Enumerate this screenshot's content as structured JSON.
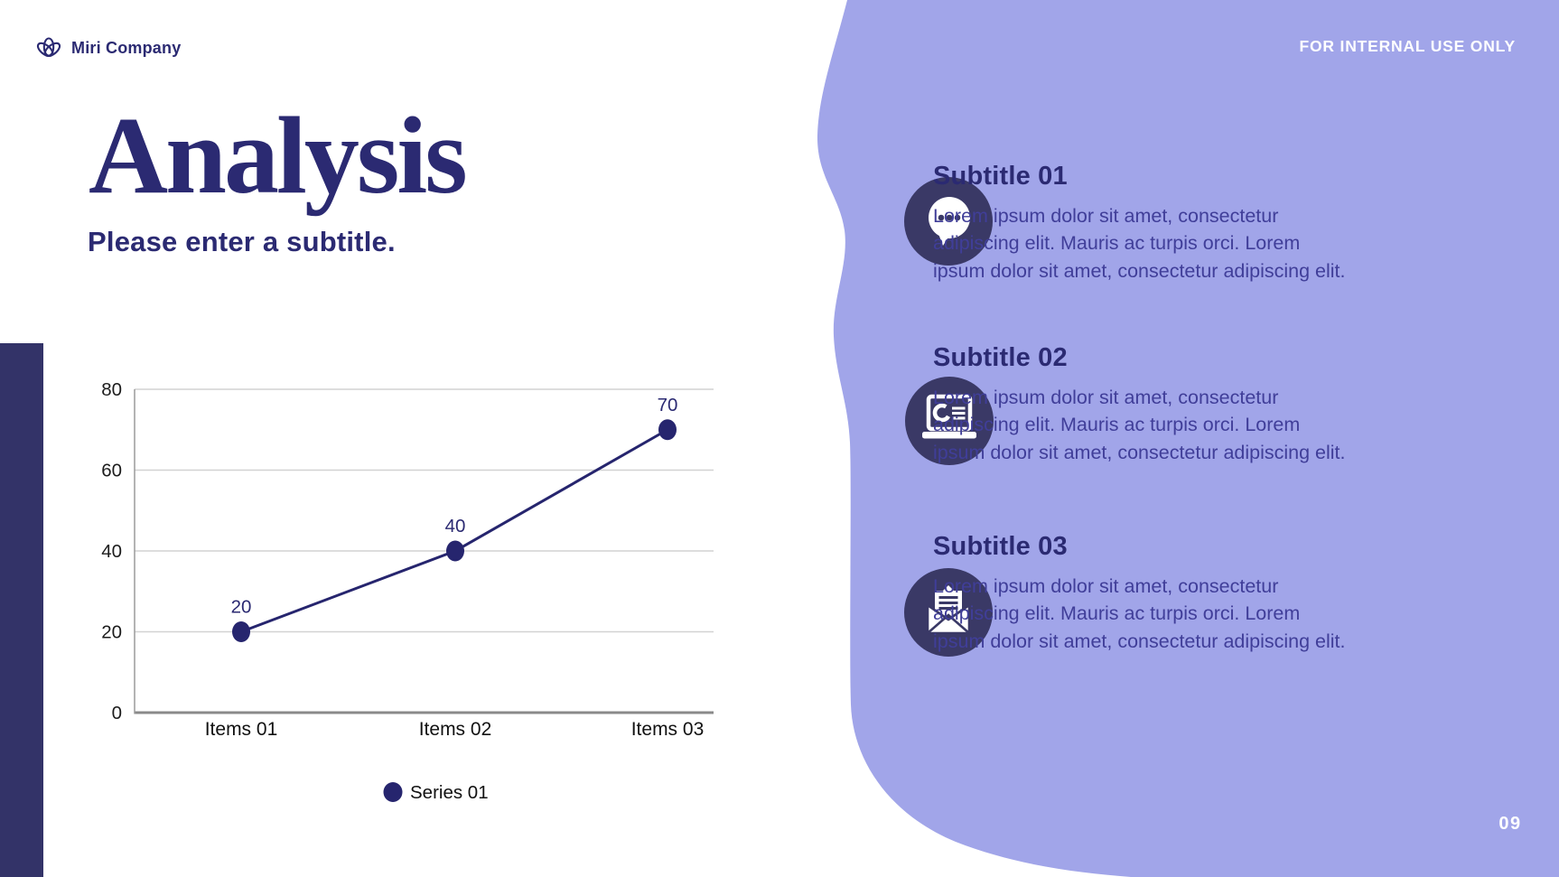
{
  "header": {
    "logo_text": "Miri Company",
    "confidentiality": "FOR INTERNAL USE ONLY"
  },
  "title": "Analysis",
  "subtitle": "Please enter a subtitle.",
  "chart_data": {
    "type": "line",
    "categories": [
      "Items 01",
      "Items 02",
      "Items 03"
    ],
    "series": [
      {
        "name": "Series 01",
        "values": [
          20,
          40,
          70
        ]
      }
    ],
    "title": "",
    "xlabel": "",
    "ylabel": "",
    "ylim": [
      0,
      80
    ],
    "yticks": [
      0,
      20,
      40,
      60,
      80
    ],
    "grid": true,
    "data_labels": [
      20,
      40,
      70
    ],
    "legend_position": "bottom"
  },
  "features": [
    {
      "icon": "chat-bubble-icon",
      "heading": "Subtitle 01",
      "body": "Lorem ipsum dolor sit amet, consectetur\nadipiscing elit. Mauris ac turpis orci. Lorem\nipsum dolor sit amet, consectetur adipiscing elit."
    },
    {
      "icon": "laptop-analytics-icon",
      "heading": "Subtitle 02",
      "body": "Lorem ipsum dolor sit amet, consectetur\nadipiscing elit. Mauris ac turpis orci. Lorem\nipsum dolor sit amet, consectetur adipiscing elit."
    },
    {
      "icon": "open-envelope-icon",
      "heading": "Subtitle 03",
      "body": "Lorem ipsum dolor sit amet, consectetur\nadipiscing elit. Mauris ac turpis orci. Lorem\nipsum dolor sit amet, consectetur adipiscing elit."
    }
  ],
  "page_number": "09",
  "colors": {
    "navy": "#2b2a72",
    "line_navy": "#26256e",
    "purple": "#a1a5e9",
    "icon_circle_navy": "#3a3966",
    "body_text": "#403e99",
    "left_bar_navy": "#333368"
  }
}
